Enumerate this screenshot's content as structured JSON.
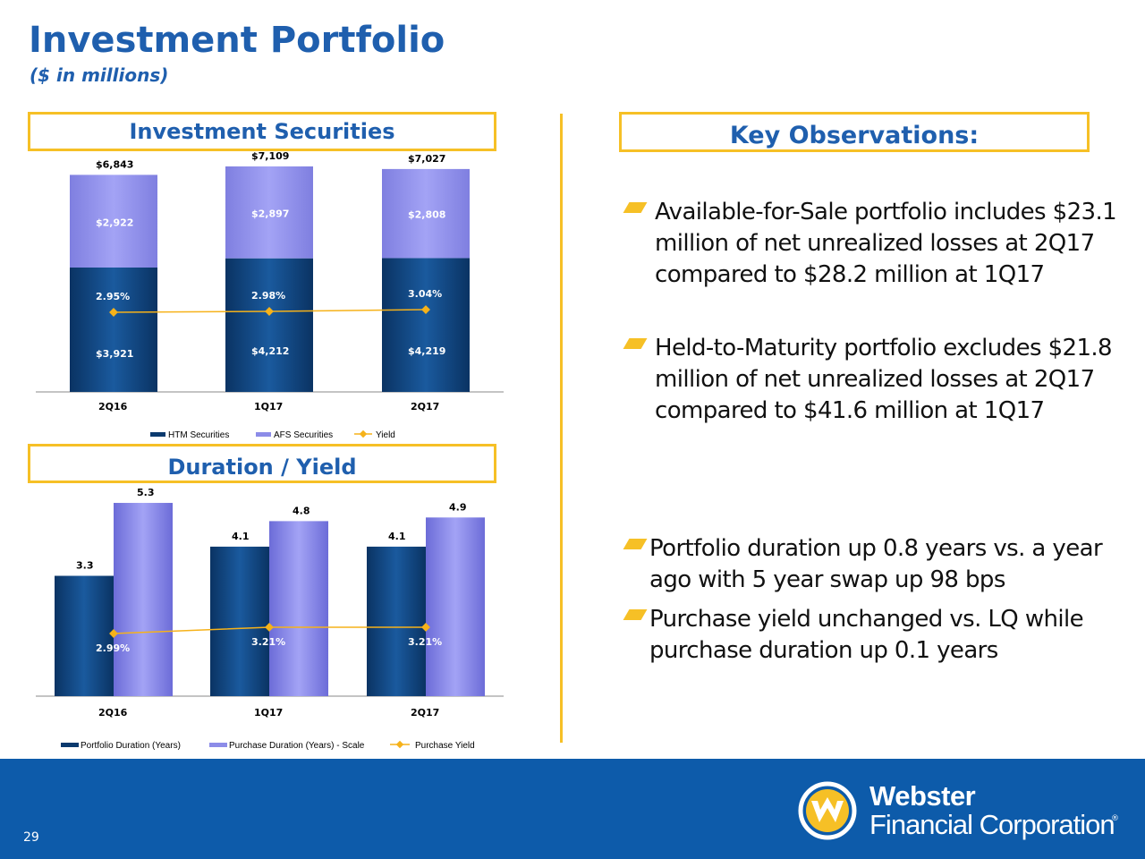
{
  "header": {
    "title": "Investment Portfolio",
    "subtitle": "($ in millions)"
  },
  "panels": {
    "investment_securities": "Investment Securities",
    "duration_yield": "Duration / Yield",
    "key_observations": "Key Observations:"
  },
  "colors": {
    "accent": "#f6c026",
    "brand_blue": "#1f5fae",
    "footer": "#0d5baa",
    "htm": "#0b3a6e",
    "afs": "#8c8ce8",
    "yield": "#f6b21a"
  },
  "chart_data": [
    {
      "type": "bar",
      "stacked": true,
      "categories": [
        "2Q16",
        "1Q17",
        "2Q17"
      ],
      "totals_labels": [
        "$6,843",
        "$7,109",
        "$7,027"
      ],
      "series": [
        {
          "name": "HTM Securities",
          "values": [
            3921,
            4212,
            4219
          ],
          "labels": [
            "$3,921",
            "$4,212",
            "$4,219"
          ]
        },
        {
          "name": "AFS Securities",
          "values": [
            2922,
            2897,
            2808
          ],
          "labels": [
            "$2,922",
            "$2,897",
            "$2,808"
          ]
        }
      ],
      "line_series": {
        "name": "Yield",
        "values": [
          2.95,
          2.98,
          3.04
        ],
        "labels": [
          "2.95%",
          "2.98%",
          "3.04%"
        ]
      },
      "legend": [
        "HTM Securities",
        "AFS Securities",
        "Yield"
      ],
      "legend_position": "bottom"
    },
    {
      "type": "bar",
      "categories": [
        "2Q16",
        "1Q17",
        "2Q17"
      ],
      "series": [
        {
          "name": "Portfolio Duration (Years)",
          "values": [
            3.3,
            4.1,
            4.1
          ],
          "labels": [
            "3.3",
            "4.1",
            "4.1"
          ]
        },
        {
          "name": "Purchase Duration (Years) - Scale",
          "values": [
            5.3,
            4.8,
            4.9
          ],
          "labels": [
            "5.3",
            "4.8",
            "4.9"
          ]
        }
      ],
      "line_series": {
        "name": "Purchase Yield",
        "values": [
          2.99,
          3.21,
          3.21
        ],
        "labels": [
          "2.99%",
          "3.21%",
          "3.21%"
        ]
      },
      "legend": [
        "Portfolio Duration (Years)",
        "Purchase Duration (Years) - Scale",
        "Purchase Yield"
      ],
      "legend_position": "bottom"
    }
  ],
  "observations": [
    "Available-for-Sale portfolio includes $23.1 million of net unrealized losses at 2Q17 compared to $28.2 million at 1Q17",
    "Held-to-Maturity portfolio excludes $21.8 million of net unrealized losses at 2Q17 compared to $41.6 million at 1Q17",
    "Portfolio duration up 0.8 years vs. a year ago with 5 year swap up 98 bps",
    "Purchase yield unchanged vs. LQ while purchase duration up 0.1 years"
  ],
  "footer": {
    "page_number": "29",
    "logo_line1": "Webster",
    "logo_line2": "Financial Corporation",
    "logo_reg": "®"
  }
}
